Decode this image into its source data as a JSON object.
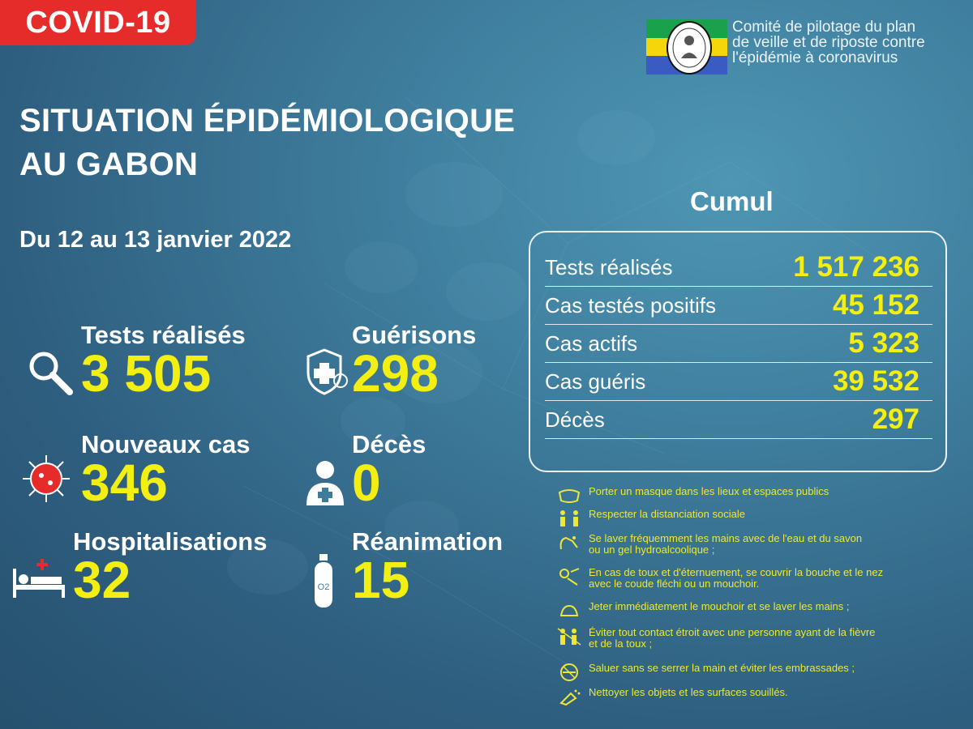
{
  "badge": "COVID-19",
  "committee": {
    "line1": "Comité de pilotage du plan",
    "line2": "de veille et de riposte contre",
    "line3": "l'épidémie à coronavirus"
  },
  "title": {
    "line1": "SITUATION ÉPIDÉMIOLOGIQUE",
    "line2": "AU GABON"
  },
  "period": "Du 12 au 13 janvier 2022",
  "stats": {
    "tests": {
      "label": "Tests réalisés",
      "value": "3 505"
    },
    "guerisons": {
      "label": "Guérisons",
      "value": "298"
    },
    "nouveaux": {
      "label": "Nouveaux cas",
      "value": "346"
    },
    "deces": {
      "label": "Décès",
      "value": "0"
    },
    "hospitalisations": {
      "label": "Hospitalisations",
      "value": "32"
    },
    "reanimation": {
      "label": "Réanimation",
      "value": "15"
    }
  },
  "cumul": {
    "title": "Cumul",
    "rows": [
      {
        "label": "Tests réalisés",
        "value": "1 517 236"
      },
      {
        "label": "Cas testés positifs",
        "value": "45 152"
      },
      {
        "label": "Cas actifs",
        "value": "5 323"
      },
      {
        "label": "Cas guéris",
        "value": "39 532"
      },
      {
        "label": "Décès",
        "value": "297"
      }
    ]
  },
  "advice": [
    {
      "icon": "mask-icon",
      "l1": "Porter un masque dans les lieux et espaces publics",
      "l2": ""
    },
    {
      "icon": "distance-icon",
      "l1": "Respecter la distanciation sociale",
      "l2": ""
    },
    {
      "icon": "handwash-icon",
      "l1": "Se laver fréquemment les mains avec de l'eau et du savon",
      "l2": " ou un gel hydroalcoolique ;"
    },
    {
      "icon": "cough-icon",
      "l1": "En cas de toux et d'éternuement, se couvrir la bouche et le nez",
      "l2": " avec le coude fléchi ou un mouchoir."
    },
    {
      "icon": "tissue-icon",
      "l1": "Jeter immédiatement le mouchoir et se laver les mains ;",
      "l2": ""
    },
    {
      "icon": "no-contact-icon",
      "l1": "Éviter tout contact étroit avec une personne ayant de la fièvre",
      "l2": " et de la toux ;"
    },
    {
      "icon": "no-handshake-icon",
      "l1": "Saluer sans se serrer la main et éviter les embrassades ;",
      "l2": ""
    },
    {
      "icon": "cleaning-icon",
      "l1": "Nettoyer les objets et les surfaces souillés.",
      "l2": ""
    }
  ],
  "colors": {
    "accent_yellow": "#f3ef12",
    "badge_red": "#e62b2b",
    "background": "#3e7c9c"
  }
}
